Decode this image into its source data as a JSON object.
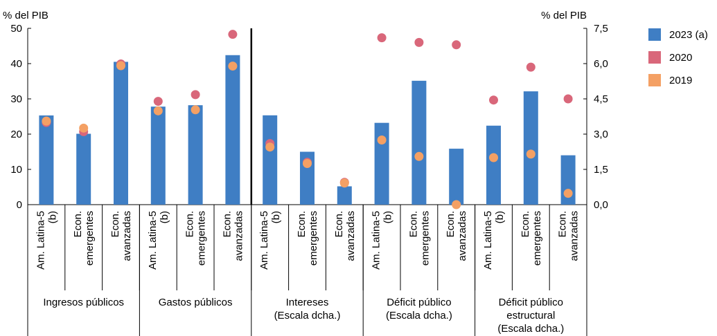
{
  "chart_data": {
    "type": "bar",
    "left_axis_label": "% del PIB",
    "right_axis_label": "% del PIB",
    "left_ylim": [
      0,
      50
    ],
    "left_ticks": [
      "0",
      "10",
      "20",
      "30",
      "40",
      "50"
    ],
    "right_ylim": [
      0,
      7.5
    ],
    "right_ticks": [
      "0,0",
      "1,5",
      "3,0",
      "4,5",
      "6,0",
      "7,5"
    ],
    "grid": false,
    "legend_position": "top-right",
    "colors": {
      "2023 (a)": "#3f7ec4",
      "2020": "#d9677a",
      "2019": "#f4a064"
    },
    "legend": [
      "2023 (a)",
      "2020",
      "2019"
    ],
    "categories": [
      "Am. Latina-5 (b)",
      "Econ. emergentes",
      "Econ. avanzadas",
      "Am. Latina-5 (b)",
      "Econ. emergentes",
      "Econ. avanzadas",
      "Am. Latina-5 (b)",
      "Econ. emergentes",
      "Econ. avanzadas",
      "Am. Latina-5 (b)",
      "Econ. emergentes",
      "Econ. avanzadas",
      "Am. Latina-5 (b)",
      "Econ. emergentes",
      "Econ. avanzadas"
    ],
    "category_lines": [
      [
        "Am. Latina-5",
        "(b)"
      ],
      [
        "Econ.",
        "emergentes"
      ],
      [
        "Econ.",
        "avanzadas"
      ],
      [
        "Am. Latina-5",
        "(b)"
      ],
      [
        "Econ.",
        "emergentes"
      ],
      [
        "Econ.",
        "avanzadas"
      ],
      [
        "Am. Latina-5",
        "(b)"
      ],
      [
        "Econ.",
        "emergentes"
      ],
      [
        "Econ.",
        "avanzadas"
      ],
      [
        "Am. Latina-5",
        "(b)"
      ],
      [
        "Econ.",
        "emergentes"
      ],
      [
        "Econ.",
        "avanzadas"
      ],
      [
        "Am. Latina-5",
        "(b)"
      ],
      [
        "Econ.",
        "emergentes"
      ],
      [
        "Econ.",
        "avanzadas"
      ]
    ],
    "groups": [
      {
        "lines": [
          "Ingresos públicos"
        ],
        "axis": "left"
      },
      {
        "lines": [
          "Gastos públicos"
        ],
        "axis": "left"
      },
      {
        "lines": [
          "Intereses",
          "(Escala dcha.)"
        ],
        "axis": "right"
      },
      {
        "lines": [
          "Déficit público",
          "(Escala dcha.)"
        ],
        "axis": "right"
      },
      {
        "lines": [
          "Déficit público",
          "estructural",
          "(Escala dcha.)"
        ],
        "axis": "right"
      }
    ],
    "series": [
      {
        "name": "2023 (a)",
        "kind": "bar",
        "values": [
          25.3,
          20.1,
          40.5,
          27.8,
          28.2,
          42.4,
          3.8,
          2.25,
          0.78,
          3.48,
          5.27,
          2.38,
          3.36,
          4.82,
          2.1
        ]
      },
      {
        "name": "2020",
        "kind": "dot",
        "values": [
          23.3,
          20.7,
          39.9,
          29.3,
          31.2,
          48.3,
          2.6,
          1.8,
          0.95,
          7.1,
          6.9,
          6.8,
          4.45,
          5.85,
          4.5
        ]
      },
      {
        "name": "2019",
        "kind": "dot",
        "values": [
          23.7,
          21.7,
          39.4,
          26.6,
          26.9,
          39.3,
          2.45,
          1.75,
          0.92,
          2.75,
          2.05,
          0.0,
          2.0,
          2.15,
          0.48
        ]
      }
    ]
  }
}
